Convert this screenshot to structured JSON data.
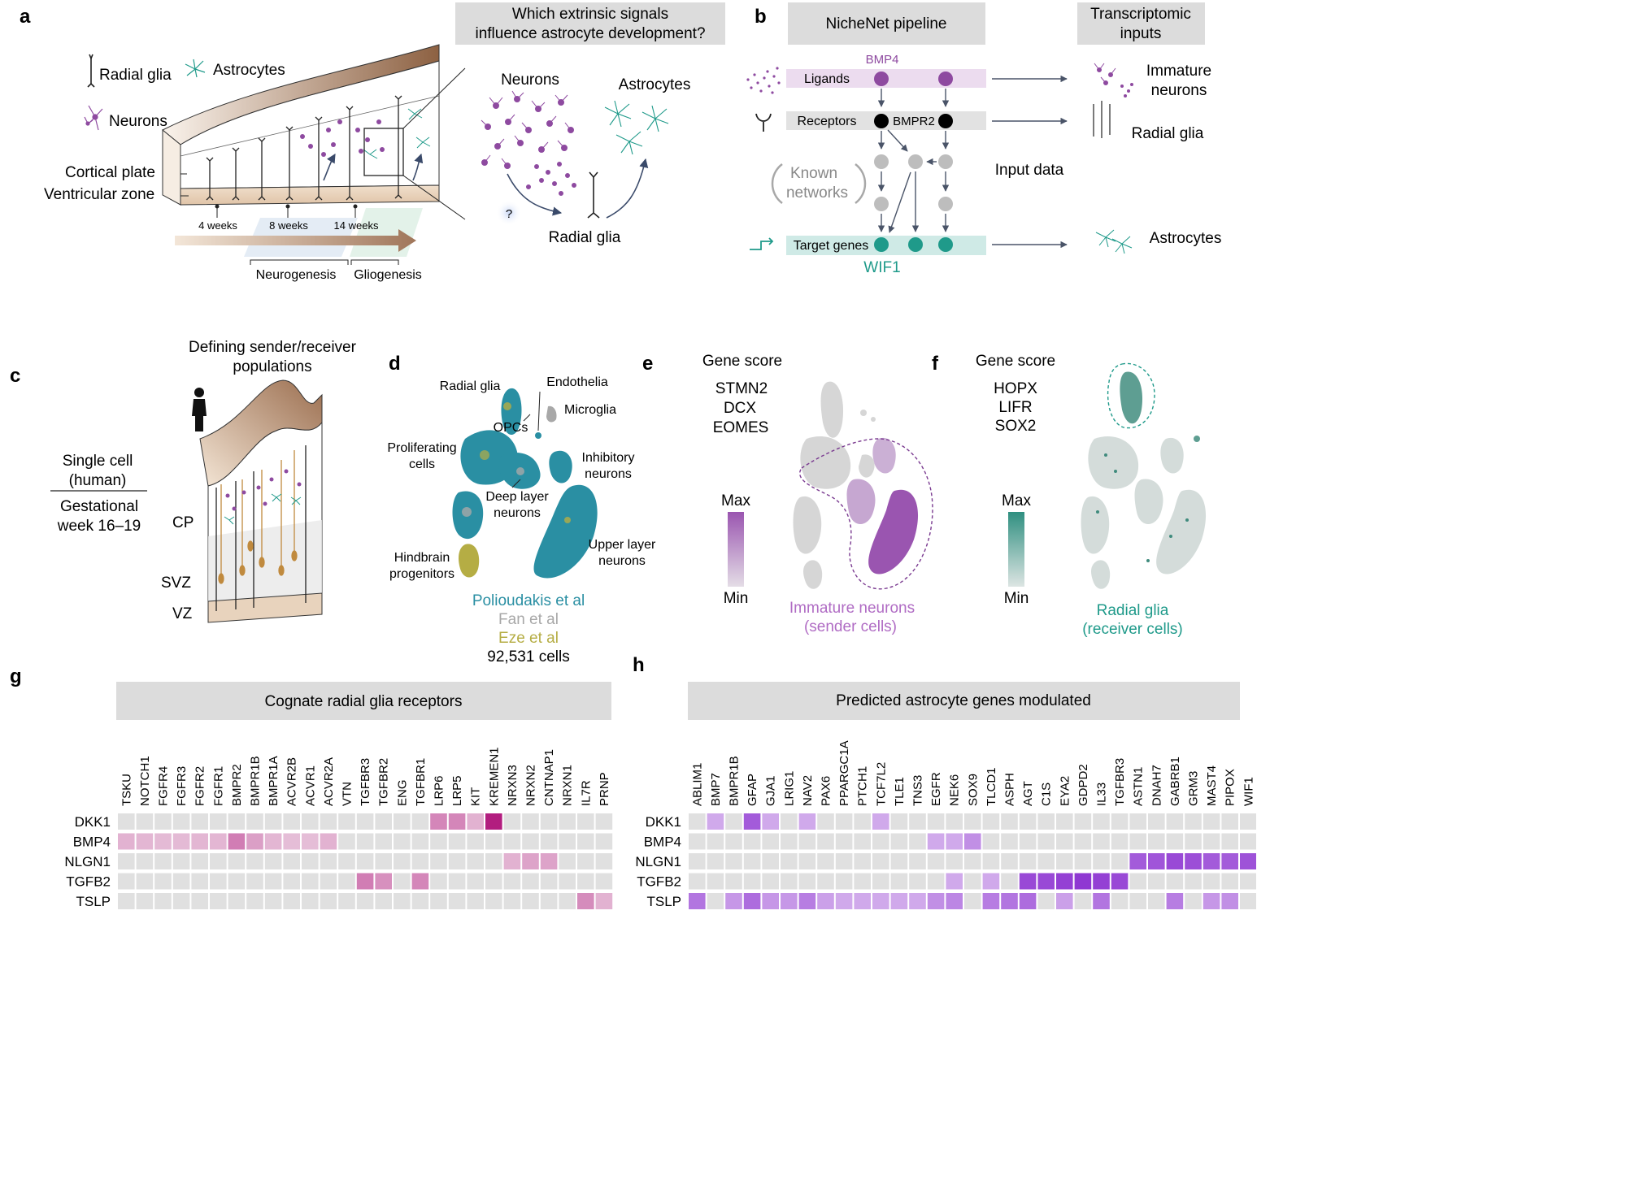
{
  "panels": {
    "a": "a",
    "b": "b",
    "c": "c",
    "d": "d",
    "e": "e",
    "f": "f",
    "g": "g",
    "h": "h"
  },
  "panel_a": {
    "question": [
      "Which extrinsic signals",
      "influence astrocyte development?"
    ],
    "legend_radial_glia": "Radial glia",
    "legend_astrocytes": "Astrocytes",
    "legend_neurons": "Neurons",
    "label_cortical_plate": "Cortical plate",
    "label_ventricular_zone": "Ventricular zone",
    "time_points": [
      "4 weeks",
      "8 weeks",
      "14 weeks"
    ],
    "phase_neurogenesis": "Neurogenesis",
    "phase_gliogenesis": "Gliogenesis",
    "zoom_neurons": "Neurons",
    "zoom_astrocytes": "Astrocytes",
    "zoom_radial_glia": "Radial glia",
    "zoom_question": "?"
  },
  "panel_b": {
    "title": "NicheNet pipeline",
    "inputs_title": [
      "Transcriptomic",
      "inputs"
    ],
    "gene_bmp4": "BMP4",
    "row_ligands": "Ligands",
    "row_receptors": "Receptors",
    "gene_bmpr2": "BMPR2",
    "known_networks": [
      "Known",
      "networks"
    ],
    "input_data": "Input data",
    "row_targets": "Target genes",
    "gene_wif1": "WIF1",
    "out_immature_neurons": [
      "Immature",
      "neurons"
    ],
    "out_radial_glia": "Radial glia",
    "out_astrocytes": "Astrocytes"
  },
  "panel_c": {
    "title": [
      "Defining sender/receiver",
      "populations"
    ],
    "single_cell": [
      "Single cell",
      "(human)"
    ],
    "gestational": [
      "Gestational",
      "week 16–19"
    ],
    "zone_cp": "CP",
    "zone_svz": "SVZ",
    "zone_vz": "VZ"
  },
  "panel_d": {
    "clusters": {
      "radial_glia": "Radial glia",
      "endothelia": "Endothelia",
      "microglia": "Microglia",
      "opcs": "OPCs",
      "proliferating": [
        "Proliferating",
        "cells"
      ],
      "inhibitory": [
        "Inhibitory",
        "neurons"
      ],
      "deep_layer": [
        "Deep layer",
        "neurons"
      ],
      "upper_layer": [
        "Upper layer",
        "neurons"
      ],
      "hindbrain": [
        "Hindbrain",
        "progenitors"
      ]
    },
    "datasets": [
      "Polioudakis et al",
      "Fan et al",
      "Eze et al"
    ],
    "cell_count": "92,531 cells"
  },
  "panel_e": {
    "title": "Gene score",
    "genes": [
      "STMN2",
      "DCX",
      "EOMES"
    ],
    "max": "Max",
    "min": "Min",
    "caption": [
      "Immature neurons",
      "(sender cells)"
    ]
  },
  "panel_f": {
    "title": "Gene score",
    "genes": [
      "HOPX",
      "LIFR",
      "SOX2"
    ],
    "max": "Max",
    "min": "Min",
    "caption": [
      "Radial glia",
      "(receiver cells)"
    ]
  },
  "colors": {
    "purple": "#8e4aa0",
    "teal": "#1f9a8a",
    "dataset_polioudakis": "#2a8fa3",
    "dataset_fan": "#a8a8a8",
    "dataset_eze": "#b5ad44",
    "grid_empty": "#e0e0e0"
  },
  "heatmap_g": {
    "title": "Cognate radial glia receptors",
    "columns": [
      "TSKU",
      "NOTCH1",
      "FGFR4",
      "FGFR3",
      "FGFR2",
      "FGFR1",
      "BMPR2",
      "BMPR1B",
      "BMPR1A",
      "ACVR2B",
      "ACVR1",
      "ACVR2A",
      "VTN",
      "TGFBR3",
      "TGFBR2",
      "ENG",
      "TGFBR1",
      "LRP6",
      "LRP5",
      "KIT",
      "KREMEN1",
      "NRXN3",
      "NRXN2",
      "CNTNAP1",
      "NRXN1",
      "IL7R",
      "PRNP"
    ],
    "rows": [
      "DKK1",
      "BMP4",
      "NLGN1",
      "TGFB2",
      "TSLP"
    ],
    "values": [
      [
        0,
        0,
        0,
        0,
        0,
        0,
        0,
        0,
        0,
        0,
        0,
        0,
        0,
        0,
        0,
        0,
        0,
        0.45,
        0.45,
        0.22,
        1.0,
        0,
        0,
        0,
        0,
        0,
        0
      ],
      [
        0.22,
        0.2,
        0.18,
        0.18,
        0.2,
        0.2,
        0.5,
        0.32,
        0.2,
        0.16,
        0.16,
        0.22,
        0,
        0,
        0,
        0,
        0,
        0,
        0,
        0,
        0,
        0,
        0,
        0,
        0,
        0,
        0
      ],
      [
        0,
        0,
        0,
        0,
        0,
        0,
        0,
        0,
        0,
        0,
        0,
        0,
        0,
        0,
        0,
        0,
        0,
        0,
        0,
        0,
        0,
        0.22,
        0.3,
        0.3,
        0,
        0,
        0
      ],
      [
        0,
        0,
        0,
        0,
        0,
        0,
        0,
        0,
        0,
        0,
        0,
        0,
        0,
        0.5,
        0.4,
        0,
        0.45,
        0,
        0,
        0,
        0,
        0,
        0,
        0,
        0,
        0,
        0
      ],
      [
        0,
        0,
        0,
        0,
        0,
        0,
        0,
        0,
        0,
        0,
        0,
        0,
        0,
        0,
        0,
        0,
        0,
        0,
        0,
        0,
        0,
        0,
        0,
        0,
        0,
        0.42,
        0.22
      ]
    ]
  },
  "heatmap_h": {
    "title": "Predicted astrocyte genes modulated",
    "columns": [
      "ABLIM1",
      "BMP7",
      "BMPR1B",
      "GFAP",
      "GJA1",
      "LRIG1",
      "NAV2",
      "PAX6",
      "PPARGC1A",
      "PTCH1",
      "TCF7L2",
      "TLE1",
      "TNS3",
      "EGFR",
      "NEK6",
      "SOX9",
      "TLCD1",
      "ASPH",
      "AGT",
      "C1S",
      "EYA2",
      "GDPD2",
      "IL33",
      "TGFBR3",
      "ASTN1",
      "DNAH7",
      "GABRB1",
      "GRM3",
      "MAST4",
      "PIPOX",
      "WIF1"
    ],
    "rows": [
      "DKK1",
      "BMP4",
      "NLGN1",
      "TGFB2",
      "TSLP"
    ],
    "values": [
      [
        0,
        0.3,
        0,
        0.75,
        0.3,
        0,
        0.3,
        0,
        0,
        0,
        0.3,
        0,
        0,
        0,
        0,
        0,
        0,
        0,
        0,
        0,
        0,
        0,
        0,
        0,
        0,
        0,
        0,
        0,
        0,
        0,
        0
      ],
      [
        0,
        0,
        0,
        0,
        0,
        0,
        0,
        0,
        0,
        0,
        0,
        0,
        0,
        0.3,
        0.3,
        0.45,
        0,
        0,
        0,
        0,
        0,
        0,
        0,
        0,
        0,
        0,
        0,
        0,
        0,
        0,
        0
      ],
      [
        0,
        0,
        0,
        0,
        0,
        0,
        0,
        0,
        0,
        0,
        0,
        0,
        0,
        0,
        0,
        0,
        0,
        0,
        0,
        0,
        0,
        0,
        0,
        0,
        0.75,
        0.78,
        0.85,
        0.82,
        0.75,
        0.75,
        0.8
      ],
      [
        0,
        0,
        0,
        0,
        0,
        0,
        0,
        0,
        0,
        0,
        0,
        0,
        0,
        0,
        0.3,
        0,
        0.3,
        0,
        0.85,
        0.85,
        0.9,
        0.95,
        0.9,
        0.85,
        0,
        0,
        0,
        0,
        0,
        0,
        0
      ],
      [
        0.6,
        0,
        0.4,
        0.65,
        0.4,
        0.4,
        0.55,
        0.35,
        0.3,
        0.3,
        0.3,
        0.3,
        0.3,
        0.45,
        0.5,
        0,
        0.55,
        0.6,
        0.65,
        0,
        0.35,
        0,
        0.6,
        0,
        0,
        0,
        0.55,
        0,
        0.4,
        0.45,
        0
      ]
    ]
  }
}
